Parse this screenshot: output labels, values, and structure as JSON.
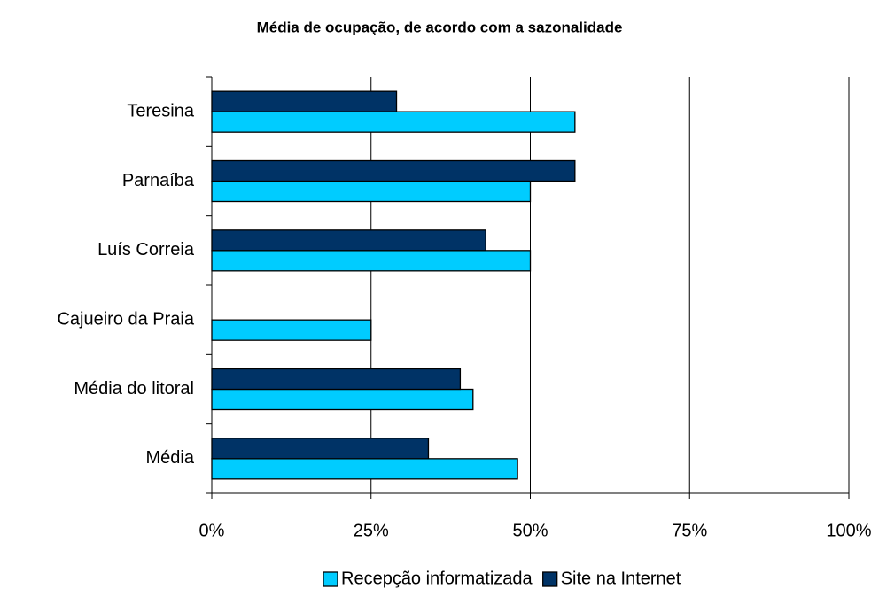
{
  "chart_data": {
    "type": "bar",
    "orientation": "horizontal",
    "title": "Média de ocupação, de acordo com a sazonalidade",
    "categories": [
      "Teresina",
      "Parnaíba",
      "Luís Correia",
      "Cajueiro da Praia",
      "Média do litoral",
      "Média"
    ],
    "series": [
      {
        "name": "Recepção informatizada",
        "color": "#00ccff",
        "values": [
          57,
          50,
          50,
          25,
          41,
          48
        ]
      },
      {
        "name": "Site na Internet",
        "color": "#003366",
        "values": [
          29,
          57,
          43,
          0,
          39,
          34
        ]
      }
    ],
    "xlim": [
      0,
      100
    ],
    "xticks": [
      {
        "value": 0,
        "label": "0%"
      },
      {
        "value": 25,
        "label": "25%"
      },
      {
        "value": 50,
        "label": "50%"
      },
      {
        "value": 75,
        "label": "75%"
      },
      {
        "value": 100,
        "label": "100%"
      }
    ],
    "grid": true,
    "legend": "bottom"
  }
}
